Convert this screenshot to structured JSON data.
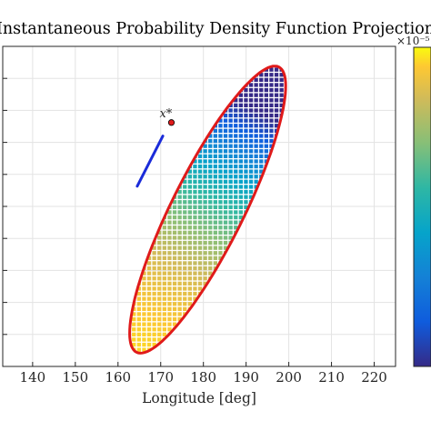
{
  "chart_data": {
    "type": "heatmap",
    "title": "Instantaneous Probability Density Function Projection",
    "xlabel": "Longitude [deg]",
    "ylabel": "",
    "xlim": [
      133,
      225
    ],
    "ylim": [
      0,
      10
    ],
    "x_ticks": [
      "140",
      "150",
      "160",
      "170",
      "180",
      "190",
      "200",
      "210",
      "220"
    ],
    "grid": true,
    "colorbar": {
      "colormap": "parula",
      "exponent_label": "×10⁻⁵",
      "range": [
        0,
        1
      ],
      "tick_labels": []
    },
    "boundary_color": "#e01a1a",
    "ellipse": {
      "center": [
        181,
        4.9
      ],
      "semi_major": 4.98,
      "semi_minor": 1.12,
      "angle_deg": 63.5
    },
    "marker": {
      "label": "x*",
      "x": 172.5,
      "y": 7.62,
      "color": "#e01a1a"
    },
    "trajectory": {
      "color": "#1a2bd9",
      "x": [
        164.5,
        170.5
      ],
      "y": [
        5.63,
        7.2
      ]
    }
  }
}
